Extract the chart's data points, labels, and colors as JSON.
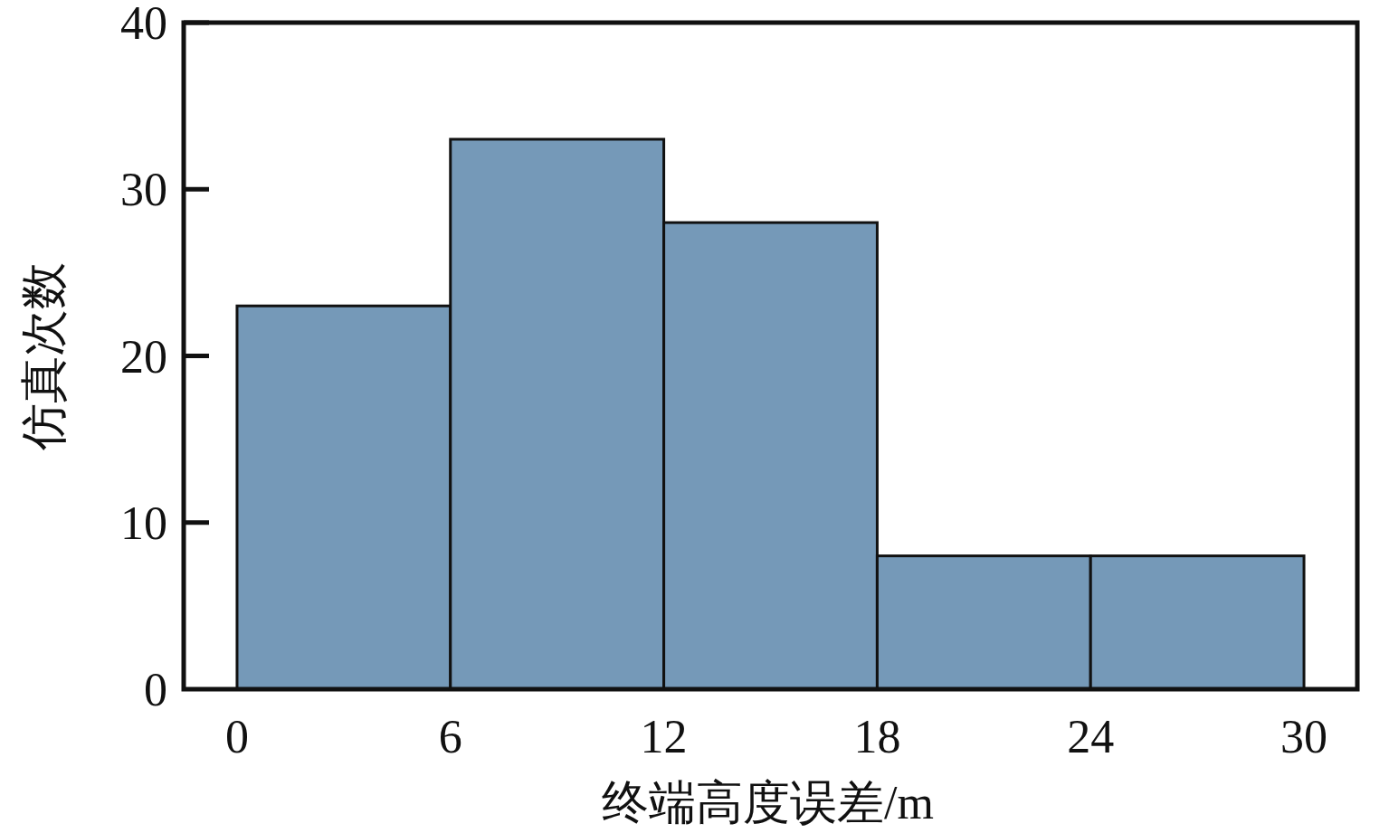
{
  "chart_data": {
    "type": "histogram",
    "xlabel": "终端高度误差/m",
    "ylabel": "仿真次数",
    "bins": [
      0,
      6,
      12,
      18,
      24,
      30
    ],
    "values": [
      23,
      33,
      28,
      8,
      8
    ],
    "color": "#7599b8",
    "xlim": [
      -1.5,
      31.5
    ],
    "ylim": [
      0,
      40
    ],
    "xticks": [
      0,
      6,
      12,
      18,
      24,
      30
    ],
    "yticks": [
      0,
      10,
      20,
      30,
      40
    ],
    "grid": false
  }
}
